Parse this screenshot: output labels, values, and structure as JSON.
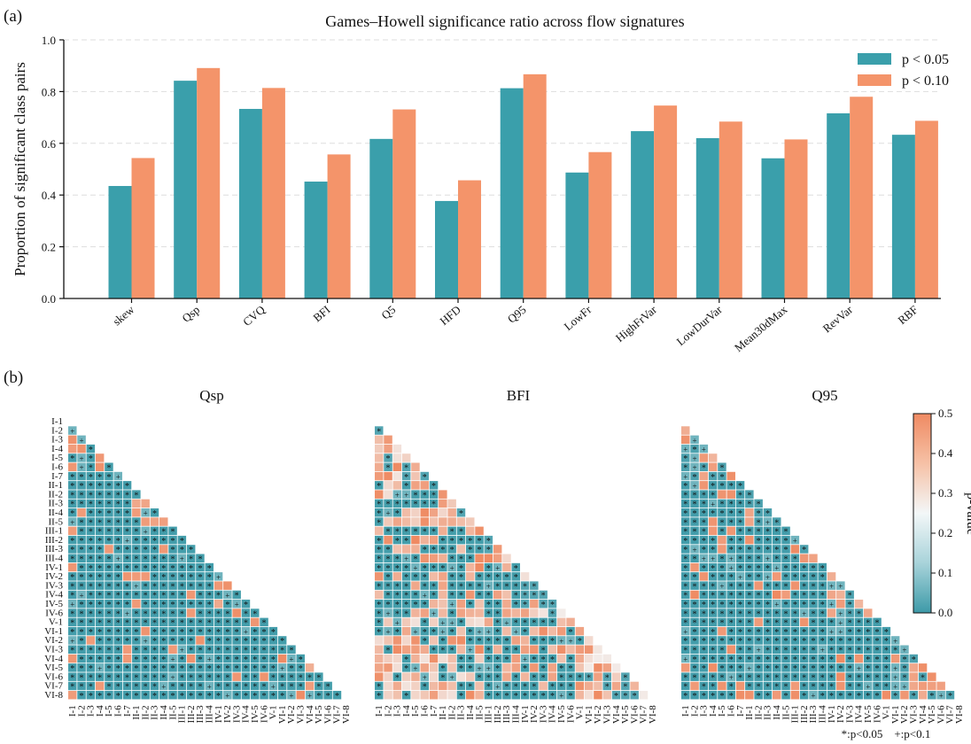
{
  "panel_a_label": "(a)",
  "panel_b_label": "(b)",
  "colors": {
    "p05": "#3a9fab",
    "p10": "#f4946a",
    "low": "#3d9aa8",
    "mid": "#f3f7f8",
    "high": "#ef8a62"
  },
  "chart_data": [
    {
      "type": "bar",
      "title": "Games–Howell significance ratio across flow signatures",
      "xlabel": "",
      "ylabel": "Proportion of significant class pairs",
      "ylim": [
        0,
        1.0
      ],
      "yticks": [
        "0.0",
        "0.2",
        "0.4",
        "0.6",
        "0.8",
        "1.0"
      ],
      "grid": "horizontal dashed",
      "legend_position": "top-right",
      "categories": [
        "skew",
        "Qsp",
        "CVQ",
        "BFI",
        "Q5",
        "HFD",
        "Q95",
        "LowFr",
        "HighFrVar",
        "LowDurVar",
        "Mean30dMax",
        "RevVar",
        "RBF"
      ],
      "series": [
        {
          "name": "p < 0.05",
          "color": "#3a9fab",
          "values": [
            0.435,
            0.842,
            0.733,
            0.452,
            0.617,
            0.377,
            0.813,
            0.487,
            0.647,
            0.62,
            0.542,
            0.716,
            0.633
          ]
        },
        {
          "name": "p < 0.10",
          "color": "#f4946a",
          "values": [
            0.543,
            0.891,
            0.814,
            0.557,
            0.731,
            0.457,
            0.867,
            0.566,
            0.746,
            0.684,
            0.615,
            0.78,
            0.687
          ]
        }
      ]
    },
    {
      "type": "heatmap",
      "classes": [
        "I-1",
        "I-2",
        "I-3",
        "I-4",
        "I-5",
        "I-6",
        "I-7",
        "II-1",
        "II-2",
        "II-3",
        "II-4",
        "II-5",
        "III-1",
        "III-2",
        "III-3",
        "III-4",
        "IV-1",
        "IV-2",
        "IV-3",
        "IV-4",
        "IV-5",
        "IV-6",
        "V-1",
        "VI-1",
        "VI-2",
        "VI-3",
        "VI-4",
        "VI-5",
        "VI-6",
        "VI-7",
        "VI-8"
      ],
      "panels": [
        "Qsp",
        "BFI",
        "Q95"
      ],
      "colorbar_label": "p-value",
      "colorbar_range": [
        0.0,
        0.5
      ],
      "colorbar_ticks": [
        "0.0",
        "0.1",
        "0.2",
        "0.3",
        "0.4",
        "0.5"
      ],
      "legend_note": "*:p<0.05    +:p<0.1"
    }
  ]
}
